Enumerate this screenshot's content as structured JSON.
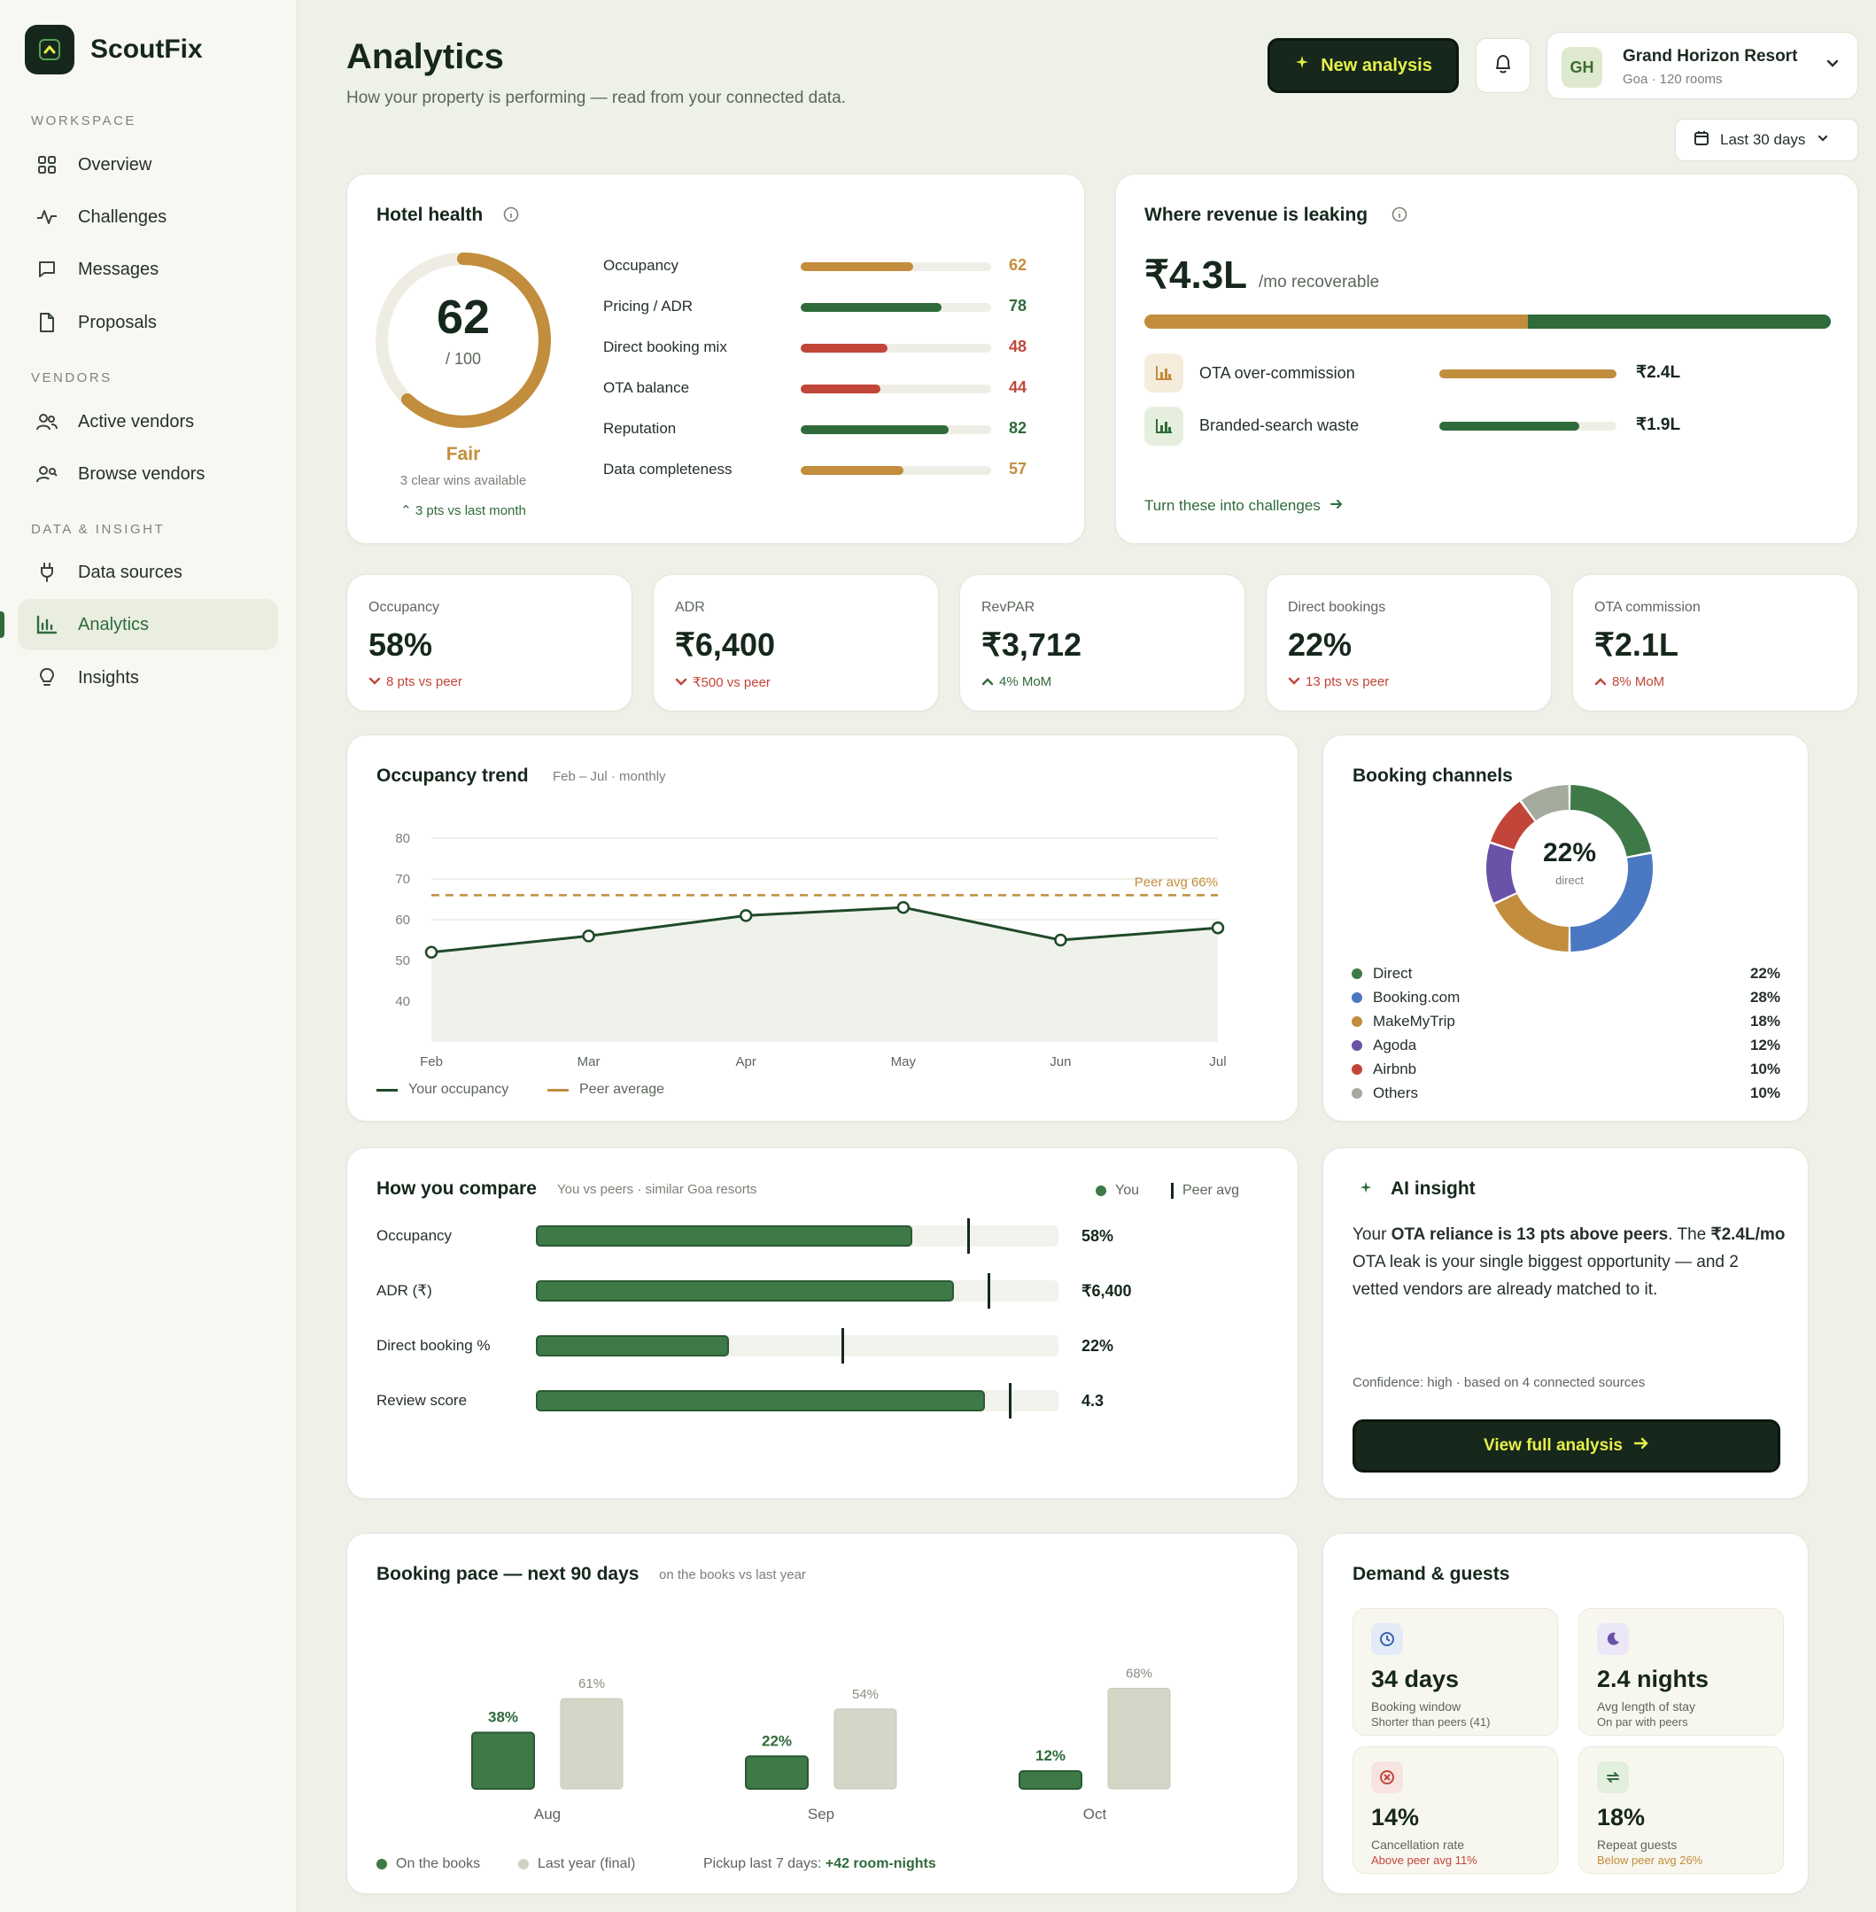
{
  "app": {
    "name": "ScoutFix"
  },
  "sidebar": {
    "sections": [
      {
        "label": "WORKSPACE"
      },
      {
        "label": "VENDORS"
      },
      {
        "label": "DATA & INSIGHT"
      }
    ],
    "items": [
      {
        "label": "Overview",
        "icon": "grid-icon"
      },
      {
        "label": "Challenges",
        "icon": "pulse-icon"
      },
      {
        "label": "Messages",
        "icon": "chat-icon"
      },
      {
        "label": "Proposals",
        "icon": "document-icon"
      },
      {
        "label": "Active vendors",
        "icon": "users-icon"
      },
      {
        "label": "Browse vendors",
        "icon": "user-search-icon"
      },
      {
        "label": "Data sources",
        "icon": "plug-icon"
      },
      {
        "label": "Analytics",
        "icon": "bar-chart-icon",
        "active": true
      },
      {
        "label": "Insights",
        "icon": "lightbulb-icon"
      }
    ]
  },
  "header": {
    "title": "Analytics",
    "subtitle": "How your property is performing — read from your connected data.",
    "new_button": "New analysis",
    "property": {
      "initials": "GH",
      "name": "Grand Horizon Resort",
      "sub": "Goa · 120 rooms"
    },
    "date_range": "Last 30 days"
  },
  "health": {
    "title": "Hotel health",
    "score": "62",
    "out_of": "/ 100",
    "score_value": 62,
    "status": "Fair",
    "wins": "3 clear wins available",
    "delta": "3 pts vs last month",
    "metrics": [
      {
        "label": "Occupancy",
        "value": 62,
        "color": "#c28d3c"
      },
      {
        "label": "Pricing / ADR",
        "value": 78,
        "color": "#2f6b3b"
      },
      {
        "label": "Direct booking mix",
        "value": 48,
        "color": "#c2453a"
      },
      {
        "label": "OTA balance",
        "value": 44,
        "color": "#c2453a"
      },
      {
        "label": "Reputation",
        "value": 82,
        "color": "#2f6b3b"
      },
      {
        "label": "Data completeness",
        "value": 57,
        "color": "#c28d3c"
      }
    ]
  },
  "leak": {
    "title": "Where revenue is leaking",
    "amount": "₹4.3L",
    "amount_sub": "/mo recoverable",
    "split": [
      2.4,
      1.9
    ],
    "items": [
      {
        "label": "OTA over-commission",
        "value": "₹2.4L",
        "share": 1.0,
        "color": "#c28d3c"
      },
      {
        "label": "Branded-search waste",
        "value": "₹1.9L",
        "share": 0.79,
        "color": "#2f6b3b"
      }
    ],
    "cta": "Turn these into challenges"
  },
  "kpis": [
    {
      "label": "Occupancy",
      "value": "58%",
      "delta": "8 pts vs peer",
      "dir": "down"
    },
    {
      "label": "ADR",
      "value": "₹6,400",
      "delta": "₹500 vs peer",
      "dir": "down"
    },
    {
      "label": "RevPAR",
      "value": "₹3,712",
      "delta": "4% MoM",
      "dir": "up-good"
    },
    {
      "label": "Direct bookings",
      "value": "22%",
      "delta": "13 pts vs peer",
      "dir": "down"
    },
    {
      "label": "OTA commission",
      "value": "₹2.1L",
      "delta": "8% MoM",
      "dir": "up-bad"
    }
  ],
  "trend": {
    "title": "Occupancy trend",
    "meta": "Feb – Jul · monthly",
    "peer_label": "Peer avg 66%",
    "legend_you": "Your occupancy",
    "legend_peer": "Peer average"
  },
  "channels": {
    "title": "Booking channels",
    "center_value": "22%",
    "center_label": "direct",
    "items": [
      {
        "label": "Direct",
        "value": 22,
        "pct": "22%",
        "color": "#3e7a48"
      },
      {
        "label": "Booking.com",
        "value": 28,
        "pct": "28%",
        "color": "#4a78c2"
      },
      {
        "label": "MakeMyTrip",
        "value": 18,
        "pct": "18%",
        "color": "#c28d3c"
      },
      {
        "label": "Agoda",
        "value": 12,
        "pct": "12%",
        "color": "#6a52a8"
      },
      {
        "label": "Airbnb",
        "value": 10,
        "pct": "10%",
        "color": "#c2453a"
      },
      {
        "label": "Others",
        "value": 10,
        "pct": "10%",
        "color": "#a4aa9c"
      }
    ]
  },
  "compare": {
    "title": "How you compare",
    "meta": "You vs peers · similar Goa resorts",
    "legend_you": "You",
    "legend_peer": "Peer avg",
    "rows": [
      {
        "label": "Occupancy",
        "you": 0.72,
        "peer": 0.825,
        "value": "58%"
      },
      {
        "label": "ADR (₹)",
        "you": 0.8,
        "peer": 0.865,
        "value": "₹6,400"
      },
      {
        "label": "Direct booking %",
        "you": 0.37,
        "peer": 0.585,
        "value": "22%"
      },
      {
        "label": "Review score",
        "you": 0.86,
        "peer": 0.905,
        "value": "4.3"
      }
    ]
  },
  "ai": {
    "title": "AI insight",
    "text_a": "Your ",
    "text_b": "OTA reliance is 13 pts above peers",
    "text_c": ". The ",
    "text_d": "₹2.4L/mo",
    "text_e": " OTA leak is your single biggest opportunity — and 2 vetted vendors are already matched to it.",
    "confidence": "Confidence: high · based on 4 connected sources",
    "button": "View full analysis"
  },
  "pace": {
    "title": "Booking pace — next 90 days",
    "meta": "on the books vs last year",
    "legend_books": "On the books",
    "legend_last": "Last year (final)",
    "pickup_label": "Pickup last 7 days: ",
    "pickup_value": "+42 room-nights"
  },
  "demand": {
    "title": "Demand & guests",
    "items": [
      {
        "value": "34 days",
        "label": "Booking window",
        "sub": "Shorter than peers (41)",
        "icon": "clock-icon",
        "sub_color": "#5d665c"
      },
      {
        "value": "2.4 nights",
        "label": "Avg length of stay",
        "sub": "On par with peers",
        "icon": "moon-icon",
        "sub_color": "#5d665c"
      },
      {
        "value": "14%",
        "label": "Cancellation rate",
        "sub": "Above peer avg 11%",
        "icon": "cancel-icon",
        "sub_color": "#c2453a"
      },
      {
        "value": "18%",
        "label": "Repeat guests",
        "sub": "Below peer avg 26%",
        "icon": "repeat-icon",
        "sub_color": "#c28d3c"
      }
    ]
  },
  "chart_data": [
    {
      "type": "line",
      "title": "Occupancy trend",
      "x": [
        "Feb",
        "Mar",
        "Apr",
        "May",
        "Jun",
        "Jul"
      ],
      "series": [
        {
          "name": "Your occupancy",
          "values": [
            52,
            56,
            61,
            63,
            55,
            58
          ]
        },
        {
          "name": "Peer average",
          "values": [
            66,
            66,
            66,
            66,
            66,
            66
          ]
        }
      ],
      "y_ticks": [
        80,
        70,
        60,
        50,
        40
      ],
      "ylim": [
        30,
        80
      ],
      "grid": true,
      "legend": "bottom-left"
    },
    {
      "type": "pie",
      "title": "Booking channels",
      "categories": [
        "Direct",
        "Booking.com",
        "MakeMyTrip",
        "Agoda",
        "Airbnb",
        "Others"
      ],
      "values": [
        22,
        28,
        18,
        12,
        10,
        10
      ]
    },
    {
      "type": "bar",
      "title": "Booking pace — next 90 days",
      "categories": [
        "Aug",
        "Sep",
        "Oct"
      ],
      "series": [
        {
          "name": "On the books",
          "values": [
            38,
            22,
            12
          ],
          "labels": [
            "38%",
            "22%",
            "12%"
          ]
        },
        {
          "name": "Last year (final)",
          "values": [
            61,
            54,
            68
          ],
          "labels": [
            "61%",
            "54%",
            "68%"
          ]
        }
      ],
      "legend": "bottom-left"
    }
  ]
}
